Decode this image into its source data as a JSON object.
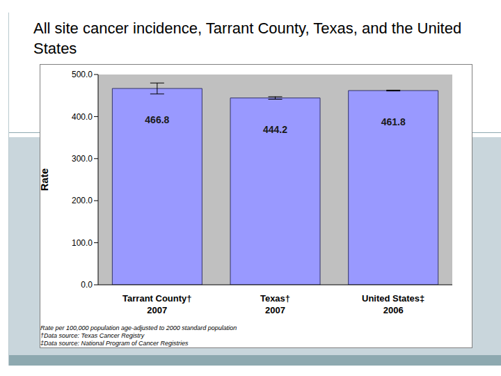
{
  "chart_data": {
    "type": "bar",
    "title": "All site cancer incidence, Tarrant County, Texas, and the United States",
    "y_label": "Rate",
    "categories": [
      "Tarrant County†\n2007",
      "Texas†\n2007",
      "United States‡\n2006"
    ],
    "values": [
      466.8,
      444.2,
      461.8
    ],
    "errors": [
      13,
      3,
      1
    ],
    "color": "#9999ff",
    "ylim": [
      0,
      500
    ],
    "yticks": [
      {
        "value": 0,
        "label": "0.0"
      },
      {
        "value": 100,
        "label": "100.0"
      },
      {
        "value": 200,
        "label": "200.0"
      },
      {
        "value": 300,
        "label": "300.0"
      },
      {
        "value": 400,
        "label": "400.0"
      },
      {
        "value": 500,
        "label": "500.0"
      }
    ],
    "grid": false,
    "data_labels": true,
    "footnotes": [
      "Rate per 100,000 population age-adjusted to 2000 standard population",
      "†Data source: Texas Cancer Registry",
      "‡Data source: National Program of Cancer Registries"
    ]
  }
}
